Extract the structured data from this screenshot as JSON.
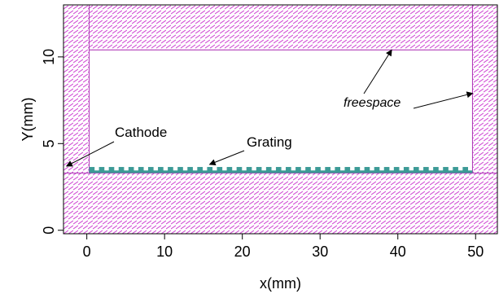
{
  "chart_data": {
    "type": "diagram",
    "title": "",
    "xlabel": "x(mm)",
    "ylabel": "Y(mm)",
    "xlim": [
      -3.0,
      52.8
    ],
    "ylim": [
      -0.2,
      13.0
    ],
    "x_ticks": [
      0,
      10,
      20,
      30,
      40,
      50
    ],
    "y_ticks": [
      0,
      5,
      10
    ],
    "x_tick_labels": [
      "0",
      "10",
      "20",
      "30",
      "40",
      "50"
    ],
    "y_tick_labels": [
      "0",
      "5",
      "10"
    ],
    "regions": {
      "bottom_pml": {
        "x": [
          -3.0,
          52.8
        ],
        "y": [
          -0.2,
          3.3
        ]
      },
      "left_pml": {
        "x": [
          -3.0,
          0.3
        ],
        "y": [
          3.3,
          13.0
        ]
      },
      "right_pml": {
        "x": [
          49.6,
          52.8
        ],
        "y": [
          3.3,
          13.0
        ]
      },
      "top_pml": {
        "x": [
          0.3,
          49.6
        ],
        "y": [
          10.4,
          13.0
        ]
      },
      "freespace": {
        "x": [
          0.3,
          49.6
        ],
        "y": [
          3.3,
          10.4
        ]
      }
    },
    "grating": {
      "x_start": 0.3,
      "x_end": 49.6,
      "base_y": [
        3.3,
        3.45
      ],
      "tooth_top": 3.65,
      "teeth": 39
    },
    "colors": {
      "pml_hatch": "#d24fd6",
      "pml_border": "#b03cb8",
      "grating": "#3c9a96",
      "axis": "#000000",
      "arrow": "#000000"
    },
    "annotations": [
      {
        "text": "Cathode",
        "italic": false,
        "target_xy": [
          -2.6,
          3.7
        ]
      },
      {
        "text": "Grating",
        "italic": false,
        "target_xy": [
          15.8,
          3.8
        ]
      },
      {
        "text": "freespace",
        "italic": true,
        "targets_xy": [
          [
            39.2,
            10.4
          ],
          [
            49.6,
            7.9
          ]
        ]
      }
    ]
  }
}
